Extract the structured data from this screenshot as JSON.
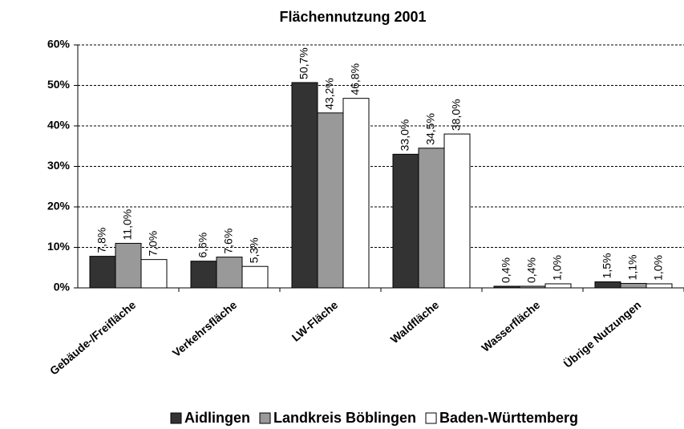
{
  "chart_data": {
    "type": "bar",
    "title": "Flächennutzung 2001",
    "categories": [
      "Gebäude-/Freifläche",
      "Verkehrsfläche",
      "LW-Fläche",
      "Waldfläche",
      "Wasserfläche",
      "Übrige Nutzungen"
    ],
    "series": [
      {
        "name": "Aidlingen",
        "color": "#333333",
        "values": [
          7.8,
          6.6,
          50.7,
          33.0,
          0.4,
          1.5
        ],
        "value_labels": [
          "7,8%",
          "6,6%",
          "50,7%",
          "33,0%",
          "0,4%",
          "1,5%"
        ]
      },
      {
        "name": "Landkreis Böblingen",
        "color": "#999999",
        "values": [
          11.0,
          7.6,
          43.2,
          34.5,
          0.4,
          1.1
        ],
        "value_labels": [
          "11,0%",
          "7,6%",
          "43,2%",
          "34,5%",
          "0,4%",
          "1,1%"
        ]
      },
      {
        "name": "Baden-Württemberg",
        "color": "#ffffff",
        "values": [
          7.0,
          5.3,
          46.8,
          38.0,
          1.0,
          1.0
        ],
        "value_labels": [
          "7,0%",
          "5,3%",
          "46,8%",
          "38,0%",
          "1,0%",
          "1,0%"
        ]
      }
    ],
    "ylim": [
      0,
      60
    ],
    "yticks": [
      {
        "value": 0,
        "label": "0%"
      },
      {
        "value": 10,
        "label": "10%"
      },
      {
        "value": 20,
        "label": "20%"
      },
      {
        "value": 30,
        "label": "30%"
      },
      {
        "value": 40,
        "label": "40%"
      },
      {
        "value": 50,
        "label": "50%"
      },
      {
        "value": 60,
        "label": "60%"
      }
    ],
    "grid": true,
    "legend": "bottom"
  }
}
